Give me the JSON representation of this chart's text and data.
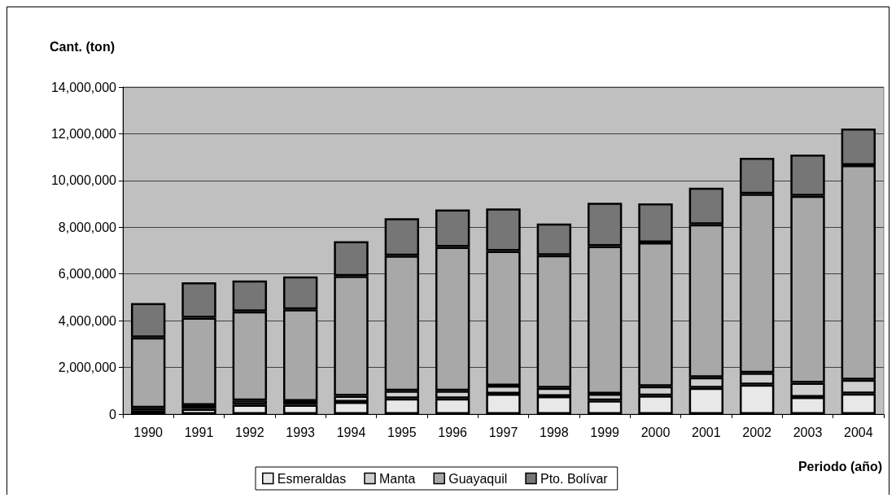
{
  "chart_data": {
    "type": "bar",
    "stacked": true,
    "ylabel": "Cant. (ton)",
    "xlabel": "Periodo (año)",
    "categories": [
      "1990",
      "1991",
      "1992",
      "1993",
      "1994",
      "1995",
      "1996",
      "1997",
      "1998",
      "1999",
      "2000",
      "2001",
      "2002",
      "2003",
      "2004"
    ],
    "series": [
      {
        "name": "Esmeraldas",
        "color": "#e8e8e8",
        "values": [
          150000,
          230000,
          400000,
          400000,
          520000,
          670000,
          670000,
          870000,
          770000,
          580000,
          790000,
          1120000,
          1260000,
          730000,
          880000
        ]
      },
      {
        "name": "Manta",
        "color": "#cfcfcf",
        "values": [
          120000,
          150000,
          180000,
          160000,
          260000,
          330000,
          330000,
          350000,
          350000,
          290000,
          400000,
          460000,
          510000,
          610000,
          590000
        ]
      },
      {
        "name": "Guayaquil",
        "color": "#a8a8a8",
        "values": [
          3010000,
          3750000,
          3820000,
          3920000,
          5130000,
          5780000,
          6160000,
          5760000,
          5680000,
          6320000,
          6160000,
          6540000,
          7660000,
          8000000,
          9190000
        ]
      },
      {
        "name": "Pto. Bolívar",
        "color": "#767676",
        "values": [
          1470000,
          1510000,
          1320000,
          1410000,
          1490000,
          1600000,
          1600000,
          1820000,
          1360000,
          1860000,
          1670000,
          1570000,
          1540000,
          1770000,
          1560000
        ]
      }
    ],
    "ylim": [
      0,
      14000000
    ],
    "yticks": [
      0,
      {
        "value": 2000000,
        "label": "2,000,000"
      },
      {
        "value": 4000000,
        "label": "4,000,000"
      },
      {
        "value": 6000000,
        "label": "6,000,000"
      },
      {
        "value": 8000000,
        "label": "8,000,000"
      },
      {
        "value": 10000000,
        "label": "10,000,000"
      },
      {
        "value": 12000000,
        "label": "12,000,000"
      },
      {
        "value": 14000000,
        "label": "14,000,000"
      }
    ],
    "grid": "y",
    "legend": "bottom"
  }
}
